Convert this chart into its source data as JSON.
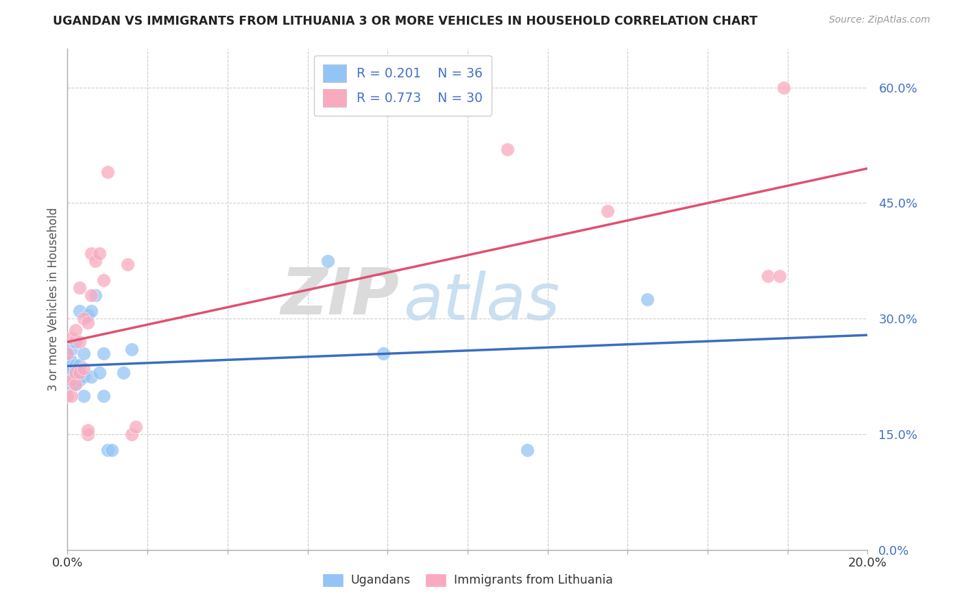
{
  "title": "UGANDAN VS IMMIGRANTS FROM LITHUANIA 3 OR MORE VEHICLES IN HOUSEHOLD CORRELATION CHART",
  "source": "Source: ZipAtlas.com",
  "ylabel": "3 or more Vehicles in Household",
  "xlim": [
    0.0,
    0.2
  ],
  "ylim": [
    0.0,
    0.65
  ],
  "yticks": [
    0.0,
    0.15,
    0.3,
    0.45,
    0.6
  ],
  "xticks": [
    0.0,
    0.02,
    0.04,
    0.06,
    0.08,
    0.1,
    0.12,
    0.14,
    0.16,
    0.18,
    0.2
  ],
  "ugandan_color": "#94C4F5",
  "lithuanian_color": "#F9AABF",
  "ugandan_line_color": "#3A6EBF",
  "lithuanian_line_color": "#E05070",
  "watermark_zip": "ZIP",
  "watermark_atlas": "atlas",
  "legend_r1": "R = 0.201",
  "legend_n1": "N = 36",
  "legend_r2": "R = 0.773",
  "legend_n2": "N = 30",
  "ugandan_x": [
    0.0,
    0.0,
    0.0,
    0.0,
    0.0,
    0.001,
    0.001,
    0.001,
    0.001,
    0.001,
    0.002,
    0.002,
    0.002,
    0.002,
    0.002,
    0.003,
    0.003,
    0.003,
    0.004,
    0.004,
    0.004,
    0.005,
    0.006,
    0.006,
    0.007,
    0.008,
    0.009,
    0.009,
    0.01,
    0.011,
    0.014,
    0.016,
    0.065,
    0.079,
    0.115,
    0.145
  ],
  "ugandan_y": [
    0.22,
    0.23,
    0.24,
    0.25,
    0.255,
    0.215,
    0.225,
    0.235,
    0.245,
    0.26,
    0.215,
    0.225,
    0.23,
    0.24,
    0.27,
    0.22,
    0.24,
    0.31,
    0.2,
    0.225,
    0.255,
    0.305,
    0.225,
    0.31,
    0.33,
    0.23,
    0.2,
    0.255,
    0.13,
    0.13,
    0.23,
    0.26,
    0.375,
    0.255,
    0.13,
    0.325
  ],
  "lithuanian_x": [
    0.0,
    0.0,
    0.001,
    0.001,
    0.001,
    0.002,
    0.002,
    0.002,
    0.003,
    0.003,
    0.003,
    0.004,
    0.004,
    0.005,
    0.005,
    0.005,
    0.006,
    0.006,
    0.007,
    0.008,
    0.009,
    0.01,
    0.015,
    0.016,
    0.017,
    0.11,
    0.135,
    0.175,
    0.178,
    0.179
  ],
  "lithuanian_y": [
    0.2,
    0.255,
    0.2,
    0.22,
    0.275,
    0.215,
    0.23,
    0.285,
    0.23,
    0.27,
    0.34,
    0.235,
    0.3,
    0.15,
    0.155,
    0.295,
    0.33,
    0.385,
    0.375,
    0.385,
    0.35,
    0.49,
    0.37,
    0.15,
    0.16,
    0.52,
    0.44,
    0.355,
    0.355,
    0.6
  ],
  "background_color": "#FFFFFF",
  "grid_color": "#CCCCCC",
  "axis_color": "#AAAAAA",
  "tick_label_color": "#4472C4",
  "ylabel_color": "#555555"
}
